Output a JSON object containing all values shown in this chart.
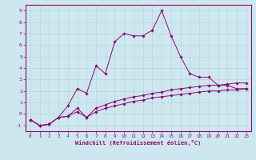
{
  "xlabel": "Windchill (Refroidissement éolien,°C)",
  "background_color": "#cce8ee",
  "grid_color": "#b8d8e0",
  "line_color": "#990077",
  "xlim": [
    -0.5,
    23.5
  ],
  "ylim": [
    -1.5,
    9.5
  ],
  "yticks": [
    -1,
    0,
    1,
    2,
    3,
    4,
    5,
    6,
    7,
    8,
    9
  ],
  "xticks": [
    0,
    1,
    2,
    3,
    4,
    5,
    6,
    7,
    8,
    9,
    10,
    11,
    12,
    13,
    14,
    15,
    16,
    17,
    18,
    19,
    20,
    21,
    22,
    23
  ],
  "series1": [
    [
      0,
      -0.5
    ],
    [
      1,
      -1.0
    ],
    [
      2,
      -0.9
    ],
    [
      3,
      -0.3
    ],
    [
      4,
      0.7
    ],
    [
      5,
      2.2
    ],
    [
      6,
      1.8
    ],
    [
      7,
      4.2
    ],
    [
      8,
      3.5
    ],
    [
      9,
      6.3
    ],
    [
      10,
      7.0
    ],
    [
      11,
      6.8
    ],
    [
      12,
      6.8
    ],
    [
      13,
      7.3
    ],
    [
      14,
      9.0
    ],
    [
      15,
      6.8
    ],
    [
      16,
      5.0
    ],
    [
      17,
      3.5
    ],
    [
      18,
      3.2
    ],
    [
      19,
      3.2
    ],
    [
      20,
      2.5
    ],
    [
      21,
      2.5
    ],
    [
      22,
      2.2
    ],
    [
      23,
      2.2
    ]
  ],
  "series2": [
    [
      0,
      -0.5
    ],
    [
      1,
      -1.0
    ],
    [
      2,
      -0.9
    ],
    [
      3,
      -0.3
    ],
    [
      4,
      -0.2
    ],
    [
      5,
      0.5
    ],
    [
      6,
      -0.3
    ],
    [
      7,
      0.5
    ],
    [
      8,
      0.8
    ],
    [
      9,
      1.1
    ],
    [
      10,
      1.3
    ],
    [
      11,
      1.5
    ],
    [
      12,
      1.6
    ],
    [
      13,
      1.8
    ],
    [
      14,
      1.9
    ],
    [
      15,
      2.1
    ],
    [
      16,
      2.2
    ],
    [
      17,
      2.3
    ],
    [
      18,
      2.4
    ],
    [
      19,
      2.5
    ],
    [
      20,
      2.5
    ],
    [
      21,
      2.6
    ],
    [
      22,
      2.7
    ],
    [
      23,
      2.7
    ]
  ],
  "series3": [
    [
      0,
      -0.5
    ],
    [
      1,
      -1.0
    ],
    [
      2,
      -0.9
    ],
    [
      3,
      -0.3
    ],
    [
      4,
      -0.2
    ],
    [
      5,
      0.2
    ],
    [
      6,
      -0.3
    ],
    [
      7,
      0.2
    ],
    [
      8,
      0.5
    ],
    [
      9,
      0.7
    ],
    [
      10,
      0.9
    ],
    [
      11,
      1.1
    ],
    [
      12,
      1.2
    ],
    [
      13,
      1.4
    ],
    [
      14,
      1.5
    ],
    [
      15,
      1.6
    ],
    [
      16,
      1.7
    ],
    [
      17,
      1.8
    ],
    [
      18,
      1.9
    ],
    [
      19,
      2.0
    ],
    [
      20,
      2.0
    ],
    [
      21,
      2.1
    ],
    [
      22,
      2.1
    ],
    [
      23,
      2.2
    ]
  ]
}
